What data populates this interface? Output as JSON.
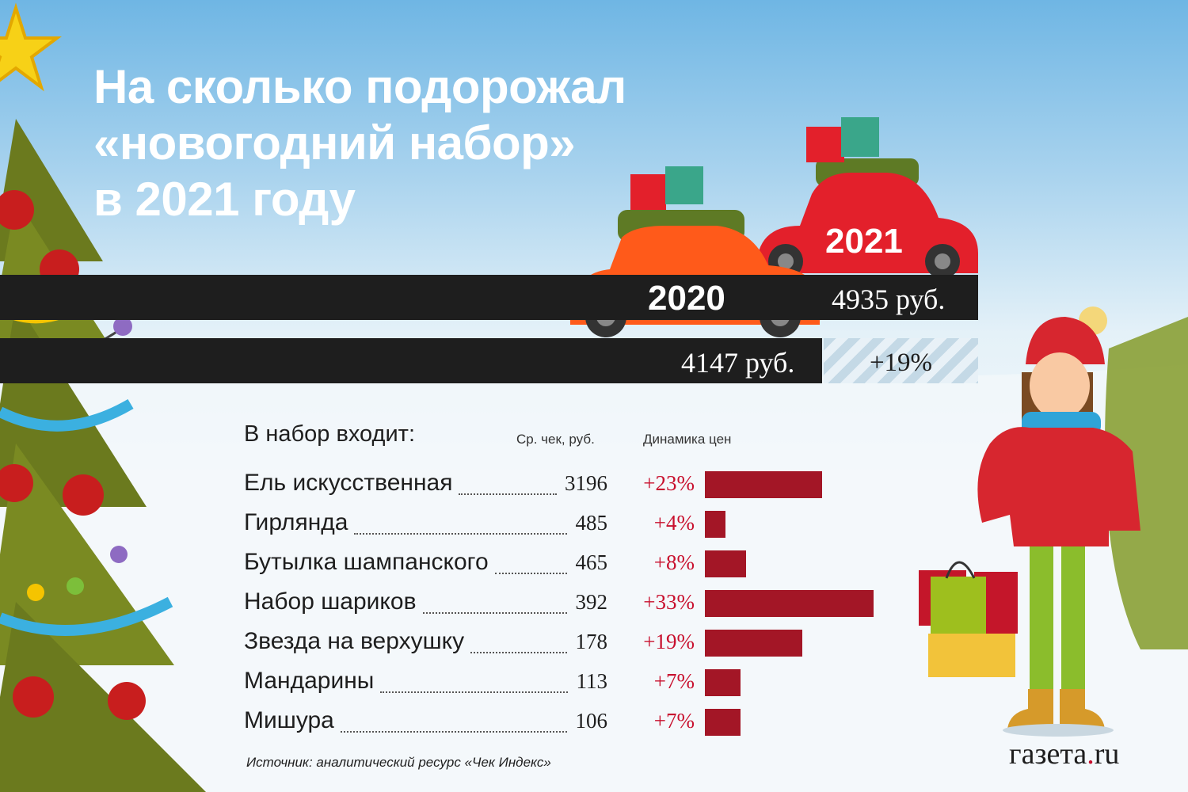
{
  "title_lines": [
    "На сколько подорожал",
    "«новогодний набор»",
    "в 2021 году"
  ],
  "totals": {
    "year_2020": {
      "label": "2020",
      "price": "4147 руб.",
      "value": 4147
    },
    "year_2021": {
      "label": "2021",
      "price": "4935 руб.",
      "value": 4935
    },
    "change": "+19%"
  },
  "list": {
    "heading": "В набор входит:",
    "col_check": "Ср. чек,  руб.",
    "col_dynamics": "Динамика цен"
  },
  "items": [
    {
      "name": "Ель искусственная",
      "value": "3196",
      "pct": "+23%",
      "pct_value": 23
    },
    {
      "name": "Гирлянда",
      "value": "485",
      "pct": "+4%",
      "pct_value": 4
    },
    {
      "name": "Бутылка шампанского",
      "value": "465",
      "pct": "+8%",
      "pct_value": 8
    },
    {
      "name": "Набор шариков",
      "value": "392",
      "pct": "+33%",
      "pct_value": 33
    },
    {
      "name": "Звезда на верхушку",
      "value": "178",
      "pct": "+19%",
      "pct_value": 19
    },
    {
      "name": "Мандарины",
      "value": "113",
      "pct": "+7%",
      "pct_value": 7
    },
    {
      "name": "Мишура",
      "value": "106",
      "pct": "+7%",
      "pct_value": 7
    }
  ],
  "chart_data": [
    {
      "type": "bar",
      "categories": [
        "2020",
        "2021"
      ],
      "values": [
        4147,
        4935
      ],
      "value_labels": [
        "4147 руб.",
        "4935 руб."
      ],
      "annotation": "+19%"
    },
    {
      "type": "bar",
      "title": "Динамика цен",
      "categories": [
        "Ель искусственная",
        "Гирлянда",
        "Бутылка шампанского",
        "Набор шариков",
        "Звезда на верхушку",
        "Мандарины",
        "Мишура"
      ],
      "values": [
        23,
        4,
        8,
        33,
        19,
        7,
        7
      ],
      "value_labels": [
        "+23%",
        "+4%",
        "+8%",
        "+33%",
        "+19%",
        "+7%",
        "+7%"
      ],
      "avg_check_rub": [
        3196,
        485,
        465,
        392,
        178,
        113,
        106
      ]
    }
  ],
  "source": "Источник: аналитический ресурс «Чек Индекс»",
  "logo": {
    "main": "газета",
    "dot": ".",
    "suffix": "ru"
  },
  "colors": {
    "sky_top": "#6fb6e4",
    "bar_dark": "#1e1e1e",
    "bar_red": "#a31626",
    "pct_text": "#c8102e",
    "car_2020": "#ff5a1a",
    "car_2021": "#e3202b",
    "tree_green": "#6b7a1e"
  },
  "icons": [
    "christmas-tree-icon",
    "car-2020-icon",
    "car-2021-icon",
    "girl-with-tree-icon",
    "shopping-bags-icon"
  ]
}
